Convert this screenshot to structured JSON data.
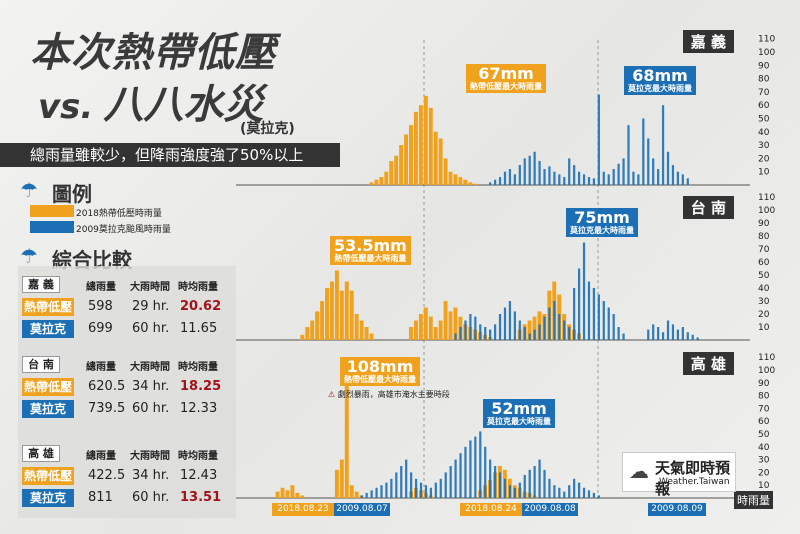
{
  "title": {
    "line1": "本次熱帶低壓",
    "vs": "vs.",
    "line2": "八八水災",
    "line3": "(莫拉克)"
  },
  "subtitle": "總雨量雖較少，但降雨強度強了50%以上",
  "legend": {
    "heading": "圖例",
    "orange": "2018熱帶低壓時雨量",
    "blue": "2009莫拉克颱風時雨量"
  },
  "compare": {
    "heading": "綜合比較",
    "columns": [
      "總雨量",
      "大雨時間",
      "時均雨量"
    ],
    "cities": [
      {
        "name": "嘉 義",
        "rows": [
          {
            "tag": "熱帶低壓",
            "total": "598",
            "hours": "29 hr.",
            "avg": "20.62",
            "red": true
          },
          {
            "tag": "莫拉克",
            "total": "699",
            "hours": "60 hr.",
            "avg": "11.65",
            "red": false
          }
        ]
      },
      {
        "name": "台 南",
        "rows": [
          {
            "tag": "熱帶低壓",
            "total": "620.5",
            "hours": "34 hr.",
            "avg": "18.25",
            "red": true
          },
          {
            "tag": "莫拉克",
            "total": "739.5",
            "hours": "60 hr.",
            "avg": "12.33",
            "red": false
          }
        ]
      },
      {
        "name": "高 雄",
        "rows": [
          {
            "tag": "熱帶低壓",
            "total": "422.5",
            "hours": "34 hr.",
            "avg": "12.43",
            "red": false
          },
          {
            "tag": "莫拉克",
            "total": "811",
            "hours": "60 hr.",
            "avg": "13.51",
            "red": true
          }
        ]
      }
    ]
  },
  "colors": {
    "orange": "#f0a21e",
    "blue": "#1c6fb5",
    "red": "#a1121a",
    "dark": "#333333"
  },
  "annotations": {
    "chiayi_td": {
      "value": "67mm",
      "note": "熱帶低壓最大時雨量"
    },
    "chiayi_mk": {
      "value": "68mm",
      "note": "莫拉克最大時雨量"
    },
    "tainan_td": {
      "value": "53.5mm",
      "note": "熱帶低壓最大時雨量"
    },
    "tainan_mk": {
      "value": "75mm",
      "note": "莫拉克最大時雨量"
    },
    "kaohsiung_td": {
      "value": "108mm",
      "note": "熱帶低壓最大時雨量"
    },
    "kaohsiung_mk": {
      "value": "52mm",
      "note": "莫拉克最大時雨量"
    },
    "warning": "劇烈暴雨，高雄市淹水主要時段"
  },
  "dates": {
    "d1": "2018.08.23",
    "d2": "2009.08.07",
    "d3": "2018.08.24",
    "d4": "2009.08.08",
    "d5": "2009.08.09"
  },
  "unit_label": "時雨量",
  "logo": {
    "name": "天氣即時預報",
    "sub": "Weather.Taiwan"
  },
  "chart_data": {
    "type": "bar",
    "ylabel": "時雨量",
    "ylim": [
      0,
      110
    ],
    "yticks": [
      10,
      20,
      30,
      40,
      50,
      60,
      70,
      80,
      90,
      100,
      110
    ],
    "panels": [
      {
        "name": "嘉 義",
        "series": [
          {
            "name": "2018熱帶低壓時雨量",
            "values": [
              0,
              0,
              0,
              0,
              0,
              0,
              0,
              0,
              0,
              0,
              0,
              0,
              0,
              0,
              0,
              0,
              0,
              0,
              0,
              0,
              0,
              0,
              0,
              0,
              0,
              2,
              4,
              6,
              10,
              18,
              22,
              30,
              38,
              45,
              55,
              60,
              67,
              58,
              40,
              35,
              20,
              10,
              8,
              6,
              4,
              2,
              1,
              0,
              0,
              0,
              0,
              0,
              0,
              0,
              0,
              0,
              0,
              0,
              0,
              0,
              0,
              0,
              0,
              0,
              0,
              0,
              0,
              0,
              0,
              0,
              0,
              0,
              0,
              0,
              0,
              0,
              0,
              0,
              0,
              0,
              0,
              0,
              0,
              0,
              0,
              0,
              0,
              0,
              0,
              0,
              0,
              0,
              0,
              0,
              0,
              0,
              0,
              0,
              0,
              0
            ]
          },
          {
            "name": "2009莫拉克颱風時雨量",
            "values": [
              0,
              0,
              0,
              0,
              0,
              0,
              0,
              0,
              0,
              0,
              0,
              0,
              0,
              0,
              0,
              0,
              0,
              0,
              0,
              0,
              0,
              0,
              0,
              0,
              0,
              0,
              0,
              0,
              0,
              0,
              0,
              0,
              0,
              0,
              0,
              0,
              0,
              0,
              0,
              0,
              0,
              0,
              0,
              0,
              0,
              0,
              0,
              0,
              0,
              2,
              4,
              6,
              10,
              12,
              8,
              15,
              20,
              22,
              25,
              18,
              12,
              14,
              10,
              8,
              6,
              20,
              15,
              10,
              8,
              6,
              5,
              68,
              10,
              8,
              12,
              16,
              20,
              45,
              10,
              8,
              50,
              35,
              20,
              12,
              60,
              25,
              15,
              10,
              8,
              5,
              0,
              0,
              0,
              0,
              0,
              0,
              0,
              0,
              0,
              0
            ]
          }
        ]
      },
      {
        "name": "台 南",
        "series": [
          {
            "name": "2018熱帶低壓時雨量",
            "values": [
              0,
              0,
              0,
              0,
              0,
              0,
              0,
              0,
              0,
              0,
              0,
              4,
              10,
              15,
              22,
              30,
              40,
              45,
              53.5,
              38,
              45,
              38,
              20,
              15,
              10,
              5,
              0,
              0,
              0,
              0,
              0,
              0,
              0,
              10,
              15,
              20,
              25,
              18,
              10,
              15,
              30,
              22,
              25,
              18,
              12,
              10,
              8,
              6,
              4,
              2,
              0,
              0,
              0,
              0,
              0,
              8,
              12,
              15,
              18,
              22,
              20,
              38,
              45,
              35,
              20,
              12,
              8,
              5,
              0,
              0,
              0,
              0,
              0,
              0,
              0,
              0,
              0,
              0,
              0,
              0,
              0,
              0,
              0,
              0,
              0,
              0,
              0,
              0,
              0,
              0,
              0,
              0,
              0,
              0,
              0,
              0,
              0,
              0,
              0,
              0
            ]
          },
          {
            "name": "2009莫拉克颱風時雨量",
            "values": [
              0,
              0,
              0,
              0,
              0,
              0,
              0,
              0,
              0,
              0,
              0,
              0,
              0,
              0,
              0,
              0,
              0,
              0,
              0,
              0,
              0,
              0,
              0,
              0,
              0,
              0,
              0,
              0,
              0,
              0,
              0,
              0,
              0,
              0,
              0,
              0,
              0,
              0,
              0,
              0,
              0,
              0,
              5,
              10,
              15,
              20,
              18,
              12,
              10,
              8,
              12,
              20,
              25,
              30,
              22,
              15,
              10,
              5,
              8,
              12,
              18,
              25,
              30,
              20,
              15,
              10,
              40,
              55,
              75,
              45,
              40,
              35,
              30,
              25,
              20,
              10,
              5,
              0,
              0,
              0,
              0,
              8,
              12,
              10,
              6,
              15,
              12,
              8,
              10,
              6,
              4,
              2,
              0,
              0,
              0,
              0,
              0,
              0,
              0,
              0
            ]
          }
        ]
      },
      {
        "name": "高 雄",
        "series": [
          {
            "name": "2018熱帶低壓時雨量",
            "values": [
              0,
              0,
              0,
              0,
              0,
              0,
              5,
              8,
              6,
              10,
              4,
              2,
              0,
              0,
              0,
              0,
              0,
              0,
              22,
              30,
              108,
              10,
              5,
              2,
              0,
              0,
              0,
              0,
              0,
              0,
              0,
              0,
              0,
              5,
              8,
              6,
              4,
              2,
              0,
              0,
              0,
              0,
              0,
              0,
              0,
              0,
              0,
              6,
              10,
              14,
              20,
              25,
              22,
              15,
              10,
              8,
              5,
              4,
              2,
              0,
              0,
              0,
              0,
              0,
              0,
              0,
              0,
              0,
              0,
              0,
              0,
              0,
              0,
              0,
              0,
              0,
              0,
              0,
              0,
              0,
              0,
              0,
              0,
              0,
              0,
              0,
              0,
              0,
              0,
              0,
              0,
              0,
              0,
              0,
              0,
              0,
              0,
              0,
              0,
              0
            ]
          },
          {
            "name": "2009莫拉克颱風時雨量",
            "values": [
              0,
              0,
              0,
              0,
              0,
              0,
              0,
              0,
              0,
              0,
              0,
              0,
              0,
              0,
              0,
              0,
              0,
              0,
              0,
              0,
              0,
              0,
              0,
              2,
              4,
              6,
              8,
              10,
              12,
              15,
              20,
              25,
              30,
              20,
              15,
              12,
              10,
              8,
              12,
              15,
              20,
              25,
              30,
              35,
              40,
              45,
              48,
              52,
              40,
              30,
              25,
              20,
              15,
              10,
              8,
              12,
              18,
              22,
              25,
              30,
              22,
              15,
              10,
              8,
              5,
              10,
              15,
              12,
              8,
              6,
              4,
              2,
              0,
              0,
              0,
              0,
              0,
              0,
              0,
              0,
              0,
              0,
              0,
              0,
              0,
              0,
              0,
              0,
              0,
              0,
              0,
              0,
              0,
              0,
              0,
              0,
              0,
              0,
              0,
              0,
              0
            ]
          }
        ]
      }
    ]
  }
}
